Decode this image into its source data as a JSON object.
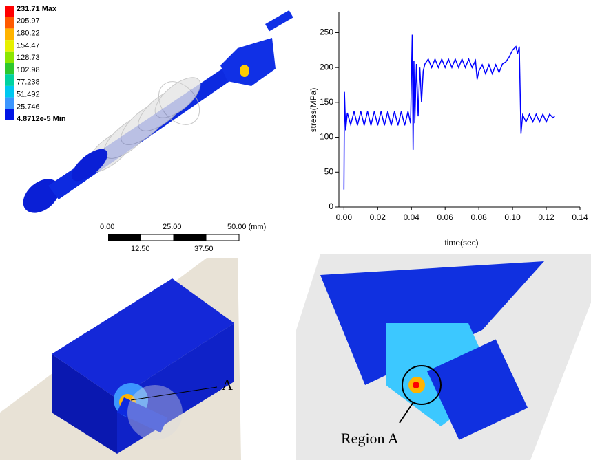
{
  "contour_legend": {
    "labels": [
      "231.71 Max",
      "205.97",
      "180.22",
      "154.47",
      "128.73",
      "102.98",
      "77.238",
      "51.492",
      "25.746",
      "4.8712e-5 Min"
    ],
    "colors": [
      "#ff0000",
      "#ff5a00",
      "#ffb400",
      "#e6f000",
      "#8ce600",
      "#2dc82d",
      "#00d2a0",
      "#00c8f0",
      "#3c96ff",
      "#0014e6"
    ]
  },
  "scale_bar": {
    "top_labels": [
      "0.00",
      "25.00",
      "50.00 (mm)"
    ],
    "bottom_labels": [
      "12.50",
      "37.50"
    ]
  },
  "annotations": {
    "point_label": "A",
    "region_label": "Region A"
  },
  "chart_data": {
    "type": "line",
    "x_label": "time(sec)",
    "y_label": "stress(MPa)",
    "color": "#0000ff",
    "xlim": [
      -0.003,
      0.14
    ],
    "xticks": [
      {
        "value": 0,
        "label": "0.00"
      },
      {
        "value": 0.02,
        "label": "0.02"
      },
      {
        "value": 0.04,
        "label": "0.04"
      },
      {
        "value": 0.06,
        "label": "0.06"
      },
      {
        "value": 0.08,
        "label": "0.08"
      },
      {
        "value": 0.1,
        "label": "0.10"
      },
      {
        "value": 0.12,
        "label": "0.12"
      },
      {
        "value": 0.14,
        "label": "0.14"
      }
    ],
    "ylim": [
      0,
      280
    ],
    "yticks": [
      0,
      50,
      100,
      150,
      200,
      250
    ],
    "x": [
      0,
      0.0003,
      0.001,
      0.002,
      0.004,
      0.006,
      0.008,
      0.01,
      0.012,
      0.014,
      0.016,
      0.018,
      0.02,
      0.022,
      0.024,
      0.026,
      0.028,
      0.03,
      0.032,
      0.034,
      0.036,
      0.038,
      0.0395,
      0.0405,
      0.041,
      0.0415,
      0.042,
      0.043,
      0.044,
      0.045,
      0.046,
      0.047,
      0.048,
      0.05,
      0.052,
      0.054,
      0.056,
      0.058,
      0.06,
      0.062,
      0.064,
      0.066,
      0.068,
      0.07,
      0.072,
      0.074,
      0.076,
      0.078,
      0.079,
      0.08,
      0.082,
      0.084,
      0.086,
      0.088,
      0.09,
      0.092,
      0.094,
      0.096,
      0.098,
      0.1,
      0.102,
      0.103,
      0.104,
      0.105,
      0.106,
      0.108,
      0.11,
      0.112,
      0.114,
      0.116,
      0.118,
      0.12,
      0.122,
      0.124,
      0.125
    ],
    "values": [
      25,
      165,
      110,
      135,
      118,
      137,
      117,
      137,
      117,
      137,
      117,
      137,
      117,
      137,
      117,
      137,
      117,
      137,
      117,
      137,
      117,
      137,
      120,
      247,
      82,
      210,
      120,
      205,
      130,
      200,
      150,
      195,
      205,
      212,
      200,
      212,
      200,
      212,
      200,
      212,
      200,
      212,
      200,
      212,
      200,
      212,
      200,
      210,
      183,
      195,
      204,
      191,
      204,
      191,
      204,
      193,
      205,
      208,
      215,
      225,
      230,
      220,
      230,
      105,
      132,
      122,
      133,
      122,
      133,
      122,
      133,
      122,
      133,
      128,
      130
    ]
  }
}
